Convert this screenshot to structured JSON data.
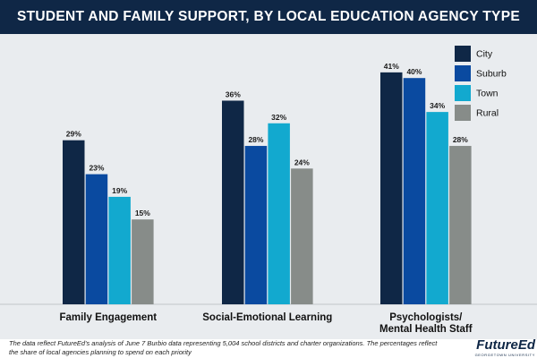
{
  "header": {
    "title": "STUDENT AND FAMILY SUPPORT, BY LOCAL EDUCATION AGENCY TYPE"
  },
  "chart_data": {
    "type": "bar",
    "title": "STUDENT AND FAMILY SUPPORT, BY LOCAL EDUCATION AGENCY TYPE",
    "categories": [
      "Family Engagement",
      "Social-Emotional Learning",
      "Psychologists/ Mental Health Staff"
    ],
    "category_lines": [
      [
        "Family Engagement"
      ],
      [
        "Social-Emotional Learning"
      ],
      [
        "Psychologists/",
        "Mental Health Staff"
      ]
    ],
    "series": [
      {
        "name": "City",
        "values": [
          29,
          36,
          41
        ],
        "color": "#0f2746"
      },
      {
        "name": "Suburb",
        "values": [
          23,
          28,
          40
        ],
        "color": "#0a4aa0"
      },
      {
        "name": "Town",
        "values": [
          19,
          32,
          34
        ],
        "color": "#12a9cf"
      },
      {
        "name": "Rural",
        "values": [
          15,
          24,
          28
        ],
        "color": "#878c89"
      }
    ],
    "value_suffix": "%",
    "ylim": [
      0,
      50
    ],
    "grid": false,
    "legend": "top-right",
    "xlabel": "",
    "ylabel": ""
  },
  "footnote": "The data reflect FutureEd's analysis of June 7 Burbio data representing 5,004 school districts and charter organizations. The percentages reflect the share of local agencies planning to spend on each priority",
  "brand": {
    "name": "FutureEd",
    "sub": "GEORGETOWN UNIVERSITY"
  }
}
